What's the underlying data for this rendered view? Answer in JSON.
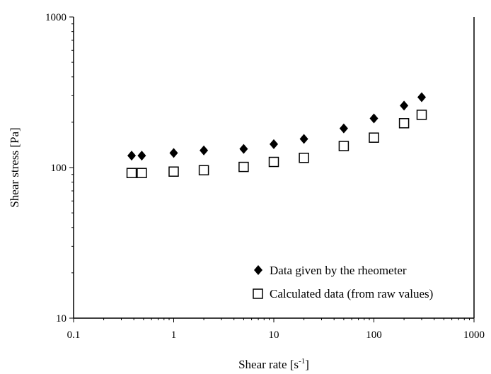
{
  "chart_data": {
    "type": "scatter",
    "title": "",
    "xlabel": "Shear rate [s",
    "xlabel_sup": "-1",
    "xlabel_suffix": "]",
    "ylabel": "Shear stress [Pa]",
    "xscale": "log",
    "yscale": "log",
    "xlim": [
      0.1,
      1000
    ],
    "ylim": [
      10,
      1000
    ],
    "x_ticks": [
      {
        "value": 0.1,
        "label": "0.1"
      },
      {
        "value": 1,
        "label": "1"
      },
      {
        "value": 10,
        "label": "10"
      },
      {
        "value": 100,
        "label": "100"
      },
      {
        "value": 1000,
        "label": "1000"
      }
    ],
    "y_ticks": [
      {
        "value": 10,
        "label": "10"
      },
      {
        "value": 100,
        "label": "100"
      },
      {
        "value": 1000,
        "label": "1000"
      }
    ],
    "grid": false,
    "legend_position": "bottom-right",
    "series": [
      {
        "name": "Data given by the rheometer",
        "marker": "diamond",
        "color": "#000000",
        "points": [
          {
            "x": 0.38,
            "y": 120
          },
          {
            "x": 0.48,
            "y": 120
          },
          {
            "x": 1,
            "y": 125
          },
          {
            "x": 2,
            "y": 130
          },
          {
            "x": 5,
            "y": 133
          },
          {
            "x": 10,
            "y": 143
          },
          {
            "x": 20,
            "y": 155
          },
          {
            "x": 50,
            "y": 182
          },
          {
            "x": 100,
            "y": 212
          },
          {
            "x": 200,
            "y": 258
          },
          {
            "x": 300,
            "y": 293
          }
        ]
      },
      {
        "name": "Calculated data (from raw values)",
        "marker": "open-square",
        "color": "#000000",
        "points": [
          {
            "x": 0.38,
            "y": 92
          },
          {
            "x": 0.48,
            "y": 92
          },
          {
            "x": 1,
            "y": 94
          },
          {
            "x": 2,
            "y": 96
          },
          {
            "x": 5,
            "y": 101
          },
          {
            "x": 10,
            "y": 109
          },
          {
            "x": 20,
            "y": 116
          },
          {
            "x": 50,
            "y": 139
          },
          {
            "x": 100,
            "y": 158
          },
          {
            "x": 200,
            "y": 197
          },
          {
            "x": 300,
            "y": 224
          }
        ]
      }
    ]
  }
}
